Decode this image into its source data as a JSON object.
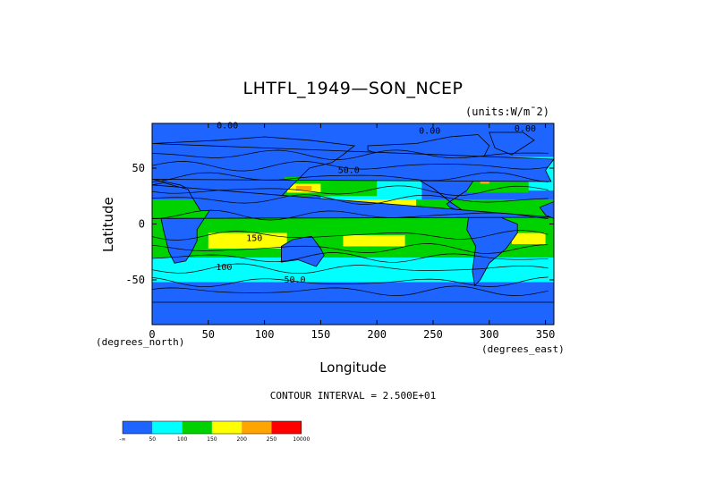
{
  "chart_data": {
    "type": "heatmap",
    "title": "LHTFL_1949—SON_NCEP",
    "units": "(units:W/m¯2)",
    "xlabel": "Longitude",
    "ylabel": "Latitude",
    "x_units_left": "(degrees_north)",
    "x_units_right": "(degrees_east)",
    "xlim": [
      0,
      357.5
    ],
    "ylim": [
      -90,
      90
    ],
    "x_ticks": [
      0,
      50,
      100,
      150,
      200,
      250,
      300,
      350
    ],
    "y_ticks": [
      50,
      0,
      -50
    ],
    "contour_interval": "CONTOUR INTERVAL = 2.500E+01",
    "contour_labels": [
      {
        "text": "0.00",
        "lon": 67,
        "lat": 89
      },
      {
        "text": "0.00",
        "lon": 247,
        "lat": 84
      },
      {
        "text": "0.00",
        "lon": 332,
        "lat": 86
      },
      {
        "text": "50.0",
        "lon": 175,
        "lat": 49
      },
      {
        "text": "150",
        "lon": 91,
        "lat": -12
      },
      {
        "text": "100",
        "lon": 64,
        "lat": -38
      },
      {
        "text": "50.0",
        "lon": 127,
        "lat": -49
      }
    ],
    "legend": {
      "boundaries": [
        "-∞",
        "50",
        "100",
        "150",
        "200",
        "250",
        "10000"
      ],
      "colors": [
        "#1e64ff",
        "#00ffff",
        "#00d200",
        "#ffff00",
        "#ffa500",
        "#ff0000"
      ]
    },
    "field_colors": {
      "land": "#1e64ff",
      "lt50": "#1e64ff",
      "50_100": "#00ffff",
      "100_150": "#00d200",
      "150_200": "#ffff00",
      "200_250": "#ffa500",
      "gt250": "#ff0000"
    }
  }
}
